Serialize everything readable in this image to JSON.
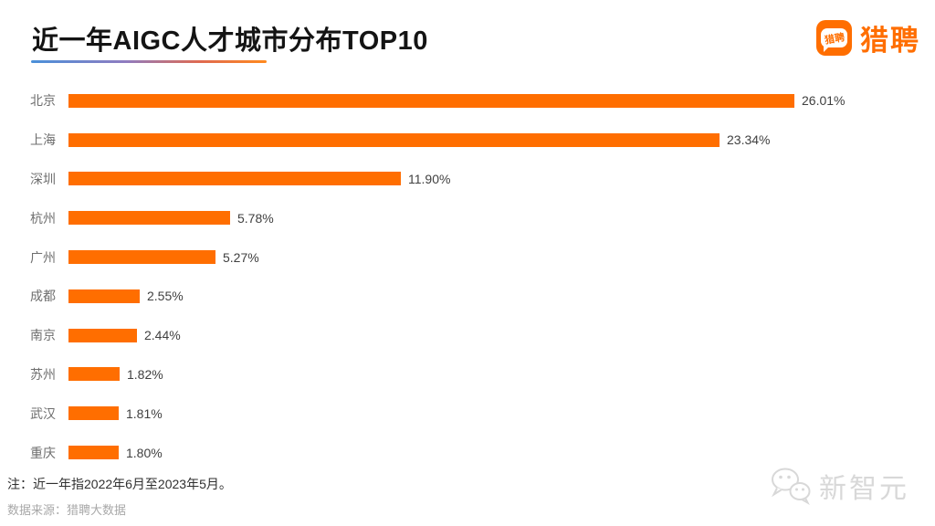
{
  "header": {
    "title": "近一年AIGC人才城市分布TOP10",
    "logo": {
      "icon_text": "猎聘",
      "text": "猎聘"
    }
  },
  "chart_data": {
    "type": "bar",
    "orientation": "horizontal",
    "title": "近一年AIGC人才城市分布TOP10",
    "categories": [
      "北京",
      "上海",
      "深圳",
      "杭州",
      "广州",
      "成都",
      "南京",
      "苏州",
      "武汉",
      "重庆"
    ],
    "values": [
      26.01,
      23.34,
      11.9,
      5.78,
      5.27,
      2.55,
      2.44,
      1.82,
      1.81,
      1.8
    ],
    "value_labels": [
      "26.01%",
      "23.34%",
      "11.90%",
      "5.78%",
      "5.27%",
      "2.55%",
      "2.44%",
      "1.82%",
      "1.81%",
      "1.80%"
    ],
    "xlim": [
      0,
      26.01
    ],
    "bar_color": "#ff6e00",
    "grid": false,
    "legend": null
  },
  "footer": {
    "note": "注：近一年指2022年6月至2023年5月。",
    "source": "数据来源：猎聘大数据",
    "watermark": "新智元"
  },
  "colors": {
    "accent_orange": "#ff6e00",
    "underline_gradient_start": "#4a90d9",
    "underline_gradient_end": "#ff8a1e",
    "city_label": "#6e6e6e",
    "value_label": "#404040",
    "watermark_gray": "#d8d8d8"
  }
}
